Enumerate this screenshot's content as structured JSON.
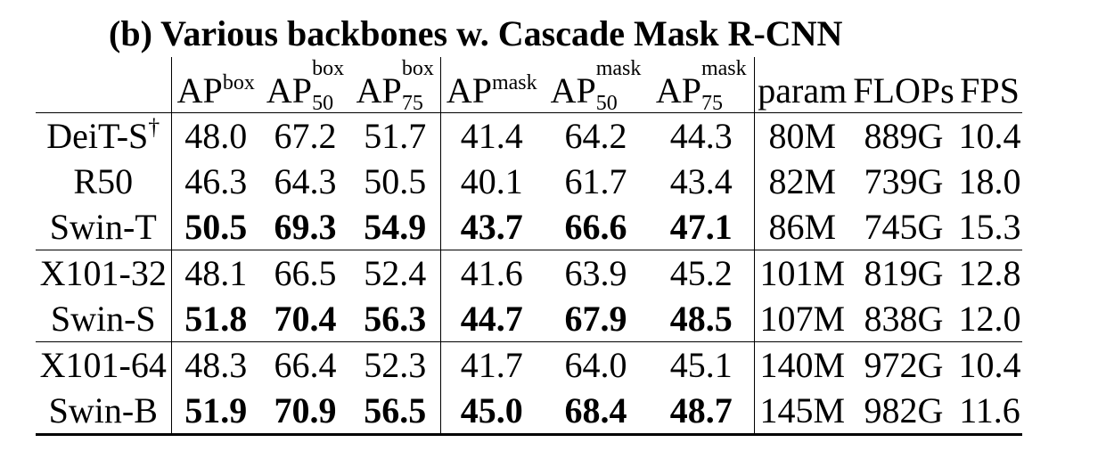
{
  "caption": "(b) Various backbones w. Cascade Mask R-CNN",
  "columns": [
    {
      "base": "AP",
      "sup": "box",
      "sub": ""
    },
    {
      "base": "AP",
      "sup": "box",
      "sub": "50"
    },
    {
      "base": "AP",
      "sup": "box",
      "sub": "75"
    },
    {
      "base": "AP",
      "sup": "mask",
      "sub": ""
    },
    {
      "base": "AP",
      "sup": "mask",
      "sub": "50"
    },
    {
      "base": "AP",
      "sup": "mask",
      "sub": "75"
    },
    {
      "base": "param",
      "sup": "",
      "sub": ""
    },
    {
      "base": "FLOPs",
      "sup": "",
      "sub": ""
    },
    {
      "base": "FPS",
      "sup": "",
      "sub": ""
    }
  ],
  "rows": [
    {
      "name": "DeiT-S",
      "mark": "†",
      "bold": false,
      "values": [
        "48.0",
        "67.2",
        "51.7",
        "41.4",
        "64.2",
        "44.3",
        "80M",
        "889G",
        "10.4"
      ]
    },
    {
      "name": "R50",
      "mark": "",
      "bold": false,
      "values": [
        "46.3",
        "64.3",
        "50.5",
        "40.1",
        "61.7",
        "43.4",
        "82M",
        "739G",
        "18.0"
      ]
    },
    {
      "name": "Swin-T",
      "mark": "",
      "bold": true,
      "values": [
        "50.5",
        "69.3",
        "54.9",
        "43.7",
        "66.6",
        "47.1",
        "86M",
        "745G",
        "15.3"
      ]
    },
    {
      "name": "X101-32",
      "mark": "",
      "bold": false,
      "values": [
        "48.1",
        "66.5",
        "52.4",
        "41.6",
        "63.9",
        "45.2",
        "101M",
        "819G",
        "12.8"
      ]
    },
    {
      "name": "Swin-S",
      "mark": "",
      "bold": true,
      "values": [
        "51.8",
        "70.4",
        "56.3",
        "44.7",
        "67.9",
        "48.5",
        "107M",
        "838G",
        "12.0"
      ]
    },
    {
      "name": "X101-64",
      "mark": "",
      "bold": false,
      "values": [
        "48.3",
        "66.4",
        "52.3",
        "41.7",
        "64.0",
        "45.1",
        "140M",
        "972G",
        "10.4"
      ]
    },
    {
      "name": "Swin-B",
      "mark": "",
      "bold": true,
      "values": [
        "51.9",
        "70.9",
        "56.5",
        "45.0",
        "68.4",
        "48.7",
        "145M",
        "982G",
        "11.6"
      ]
    }
  ]
}
